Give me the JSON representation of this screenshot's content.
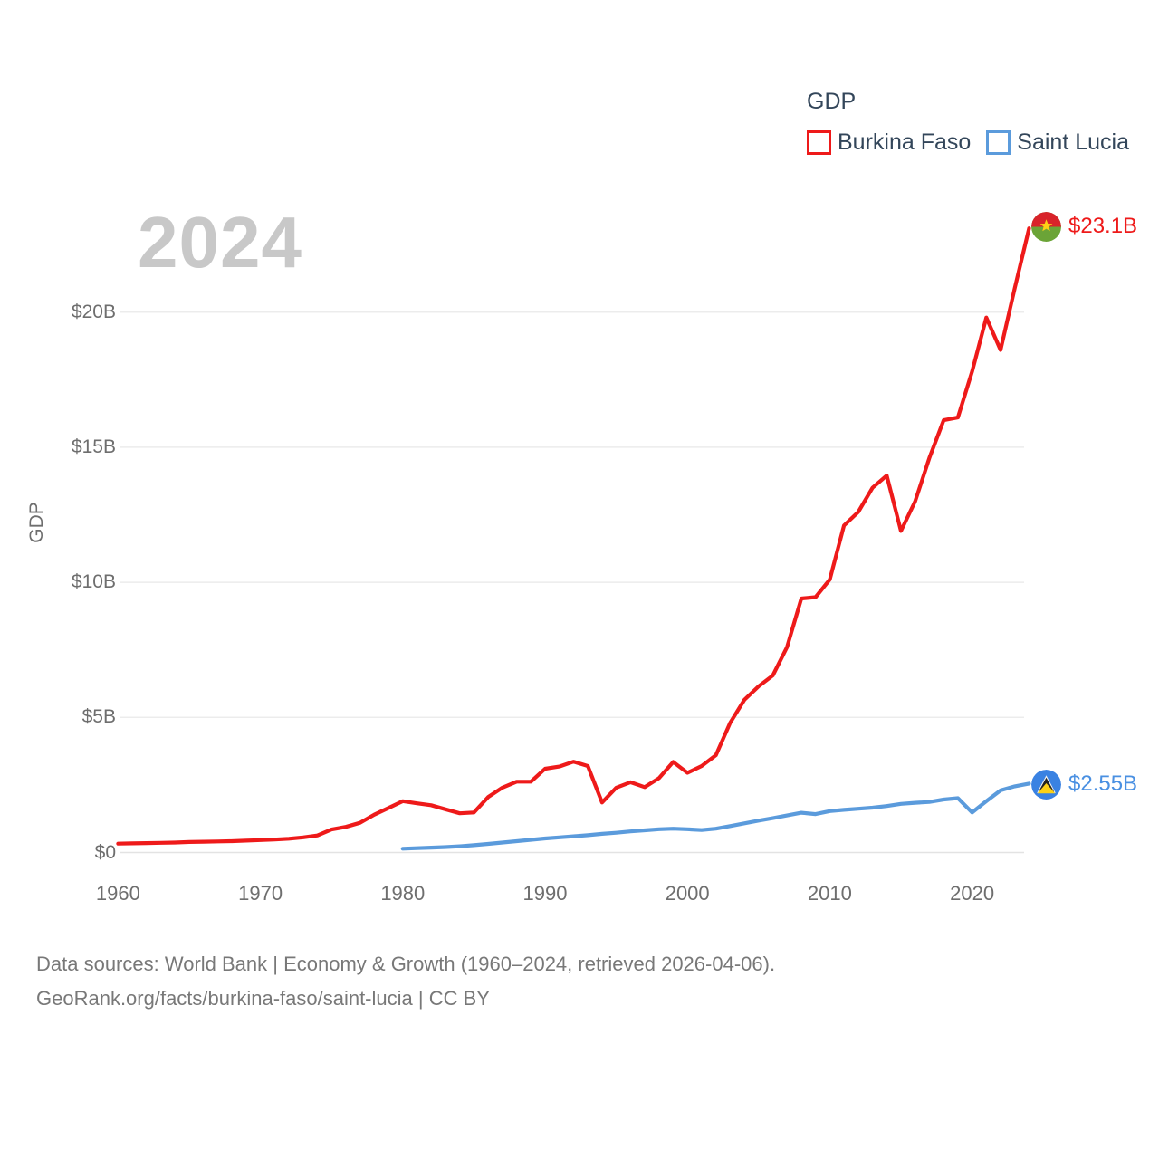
{
  "legend": {
    "title": "GDP"
  },
  "watermark": "2024",
  "footer": {
    "line1": "Data sources: World Bank | Economy & Growth (1960–2024, retrieved 2026-04-06).",
    "line2": "GeoRank.org/facts/burkina-faso/saint-lucia | CC BY"
  },
  "chart_data": {
    "type": "line",
    "title": "GDP",
    "watermark": "2024",
    "ylabel": "GDP",
    "xlim": [
      1960,
      2024
    ],
    "ylim": [
      0,
      23.5
    ],
    "grid": true,
    "legend_position": "top-right",
    "x_ticks": [
      1960,
      1970,
      1980,
      1990,
      2000,
      2010,
      2020
    ],
    "y_ticks": [
      {
        "value": 0,
        "label": "$0"
      },
      {
        "value": 5,
        "label": "$5B"
      },
      {
        "value": 10,
        "label": "$10B"
      },
      {
        "value": 15,
        "label": "$15B"
      },
      {
        "value": 20,
        "label": "$20B"
      }
    ],
    "unit": "current US$ billions",
    "series": [
      {
        "name": "Burkina Faso",
        "color": "#ee1a1a",
        "end_label": "$23.1B",
        "end_value_billion": 23.1,
        "start_year": 1960,
        "values": [
          0.33,
          0.34,
          0.35,
          0.36,
          0.37,
          0.39,
          0.4,
          0.41,
          0.42,
          0.44,
          0.46,
          0.48,
          0.51,
          0.56,
          0.63,
          0.85,
          0.95,
          1.1,
          1.4,
          1.65,
          1.9,
          1.82,
          1.75,
          1.6,
          1.45,
          1.48,
          2.05,
          2.4,
          2.62,
          2.62,
          3.1,
          3.18,
          3.36,
          3.2,
          1.85,
          2.4,
          2.6,
          2.42,
          2.75,
          3.35,
          2.95,
          3.2,
          3.6,
          4.8,
          5.65,
          6.15,
          6.55,
          7.6,
          9.4,
          9.45,
          10.1,
          12.1,
          12.6,
          13.5,
          13.95,
          11.9,
          13.0,
          14.6,
          16.0,
          16.1,
          17.8,
          19.8,
          18.6,
          20.9,
          23.1
        ]
      },
      {
        "name": "Saint Lucia",
        "color": "#5b9bdc",
        "label_color": "#4a90e2",
        "end_label": "$2.55B",
        "end_value_billion": 2.55,
        "start_year": 1980,
        "values": [
          0.14,
          0.16,
          0.18,
          0.2,
          0.23,
          0.27,
          0.32,
          0.37,
          0.42,
          0.47,
          0.52,
          0.56,
          0.6,
          0.64,
          0.69,
          0.73,
          0.78,
          0.82,
          0.86,
          0.88,
          0.86,
          0.83,
          0.88,
          0.98,
          1.08,
          1.18,
          1.27,
          1.37,
          1.47,
          1.42,
          1.53,
          1.58,
          1.62,
          1.66,
          1.72,
          1.8,
          1.84,
          1.87,
          1.96,
          2.01,
          1.48,
          1.9,
          2.3,
          2.45,
          2.55
        ]
      }
    ]
  }
}
